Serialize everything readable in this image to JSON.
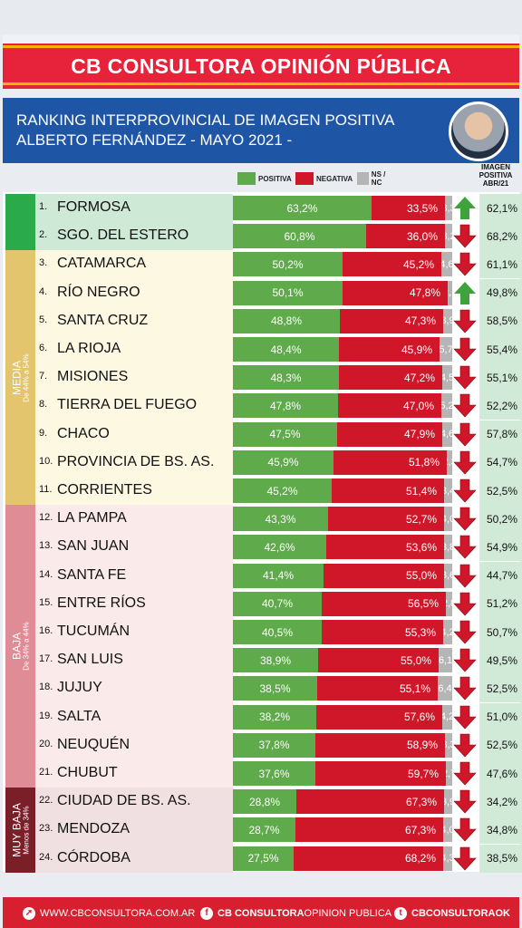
{
  "header": {
    "title": "CB CONSULTORA OPINIÓN PÚBLICA",
    "subtitle_line1": "RANKING INTERPROVINCIAL DE IMAGEN POSITIVA",
    "subtitle_line2": "ALBERTO FERNÁNDEZ  - MAYO 2021 -"
  },
  "legend": {
    "positive": "POSITIVA",
    "negative": "NEGATIVA",
    "ns": "NS / NC"
  },
  "image_column_header": [
    "IMAGEN",
    "POSITIVA",
    "ABR/21"
  ],
  "colors": {
    "positive": "#5faa4a",
    "negative": "#d0172a",
    "ns": "#b5b5b5",
    "up_arrow": "#3ea33a",
    "down_arrow": "#d0172a"
  },
  "categories": [
    {
      "label": "",
      "sub": "",
      "color": "#2aaa4a",
      "from": 0,
      "to": 1,
      "row_bg": "#cfe9d7"
    },
    {
      "label": "MEDIA",
      "sub": "De 44% a 54%",
      "color": "#e2c56c",
      "from": 2,
      "to": 10,
      "row_bg": "#fdf8e2"
    },
    {
      "label": "BAJA",
      "sub": "De 34% a 44%",
      "color": "#e08c96",
      "from": 11,
      "to": 20,
      "row_bg": "#fbeaea"
    },
    {
      "label": "MUY BAJA",
      "sub": "Menos de 34%",
      "color": "#7a1e28",
      "from": 21,
      "to": 23,
      "row_bg": "#f0e0e1"
    }
  ],
  "chart_data": {
    "type": "bar",
    "title": "RANKING INTERPROVINCIAL DE IMAGEN POSITIVA ALBERTO FERNÁNDEZ - MAYO 2021 -",
    "categories": [
      "FORMOSA",
      "SGO. DEL ESTERO",
      "CATAMARCA",
      "RÍO NEGRO",
      "SANTA CRUZ",
      "LA RIOJA",
      "MISIONES",
      "TIERRA DEL FUEGO",
      "CHACO",
      "PROVINCIA DE BS. AS.",
      "CORRIENTES",
      "LA PAMPA",
      "SAN JUAN",
      "SANTA FE",
      "ENTRE RÍOS",
      "TUCUMÁN",
      "SAN LUIS",
      "JUJUY",
      "SALTA",
      "NEUQUÉN",
      "CHUBUT",
      "CIUDAD DE BS. AS.",
      "MENDOZA",
      "CÓRDOBA"
    ],
    "series": [
      {
        "name": "POSITIVA",
        "values": [
          63.2,
          60.8,
          50.2,
          50.1,
          48.8,
          48.4,
          48.3,
          47.8,
          47.5,
          45.9,
          45.2,
          43.3,
          42.6,
          41.4,
          40.7,
          40.5,
          38.9,
          38.5,
          38.2,
          37.8,
          37.6,
          28.8,
          28.7,
          27.5
        ]
      },
      {
        "name": "NEGATIVA",
        "values": [
          33.5,
          36.0,
          45.2,
          47.8,
          47.3,
          45.9,
          47.2,
          47.0,
          47.9,
          51.8,
          51.4,
          52.7,
          53.6,
          55.0,
          56.5,
          55.3,
          55.0,
          55.1,
          57.6,
          58.9,
          59.7,
          67.3,
          67.3,
          68.2
        ]
      },
      {
        "name": "NS / NC",
        "values": [
          3.3,
          3.2,
          4.6,
          2.1,
          3.9,
          5.7,
          4.5,
          5.2,
          4.6,
          2.3,
          3.4,
          4.0,
          3.8,
          3.6,
          2.8,
          4.2,
          6.1,
          6.4,
          4.2,
          3.3,
          2.7,
          3.9,
          4.0,
          4.3
        ]
      }
    ],
    "ranks": [
      "1.",
      "2.",
      "3.",
      "4.",
      "5.",
      "6.",
      "7.",
      "8.",
      "9.",
      "10.",
      "11.",
      "12.",
      "13.",
      "14.",
      "15.",
      "16.",
      "17.",
      "18.",
      "19.",
      "20.",
      "21.",
      "22.",
      "23.",
      "24."
    ],
    "labels": {
      "positive": [
        "63,2%",
        "60,8%",
        "50,2%",
        "50,1%",
        "48,8%",
        "48,4%",
        "48,3%",
        "47,8%",
        "47,5%",
        "45,9%",
        "45,2%",
        "43,3%",
        "42,6%",
        "41,4%",
        "40,7%",
        "40,5%",
        "38,9%",
        "38,5%",
        "38,2%",
        "37,8%",
        "37,6%",
        "28,8%",
        "28,7%",
        "27,5%"
      ],
      "negative": [
        "33,5%",
        "36,0%",
        "45,2%",
        "47,8%",
        "47,3%",
        "45,9%",
        "47,2%",
        "47,0%",
        "47,9%",
        "51,8%",
        "51,4%",
        "52,7%",
        "53,6%",
        "55,0%",
        "56,5%",
        "55,3%",
        "55,0%",
        "55,1%",
        "57,6%",
        "58,9%",
        "59,7%",
        "67,3%",
        "67,3%",
        "68,2%"
      ],
      "ns": [
        "3,3",
        "3,2",
        "4,6",
        "2,1",
        "3,9",
        "5,7",
        "4,5",
        "5,2",
        "4,6",
        "2,3",
        "3,4",
        "4,0",
        "3,8",
        "3,6",
        "2,8",
        "4,2",
        "6,1",
        "6,4",
        "4,2",
        "3,3",
        "2,7",
        "3,9",
        "4,0",
        "4,3"
      ]
    },
    "trend": [
      "up",
      "down",
      "down",
      "up",
      "down",
      "down",
      "down",
      "down",
      "down",
      "down",
      "down",
      "down",
      "down",
      "down",
      "down",
      "down",
      "down",
      "down",
      "down",
      "down",
      "down",
      "down",
      "down",
      "down"
    ],
    "image_positive_abr21": [
      "62,1%",
      "68,2%",
      "61,1%",
      "49,8%",
      "58,5%",
      "55,4%",
      "55,1%",
      "52,2%",
      "57,8%",
      "54,7%",
      "52,5%",
      "50,2%",
      "54,9%",
      "44,7%",
      "51,2%",
      "50,7%",
      "49,5%",
      "52,5%",
      "51,0%",
      "52,5%",
      "47,6%",
      "34,2%",
      "34,8%",
      "38,5%"
    ],
    "xlim": [
      0,
      100
    ],
    "legend_position": "top"
  },
  "footer": {
    "website": "WWW.CBCONSULTORA.COM.AR",
    "facebook_bold": "CB CONSULTORA",
    "facebook_rest": " OPINION PUBLICA",
    "twitter": "CBCONSULTORAOK"
  }
}
